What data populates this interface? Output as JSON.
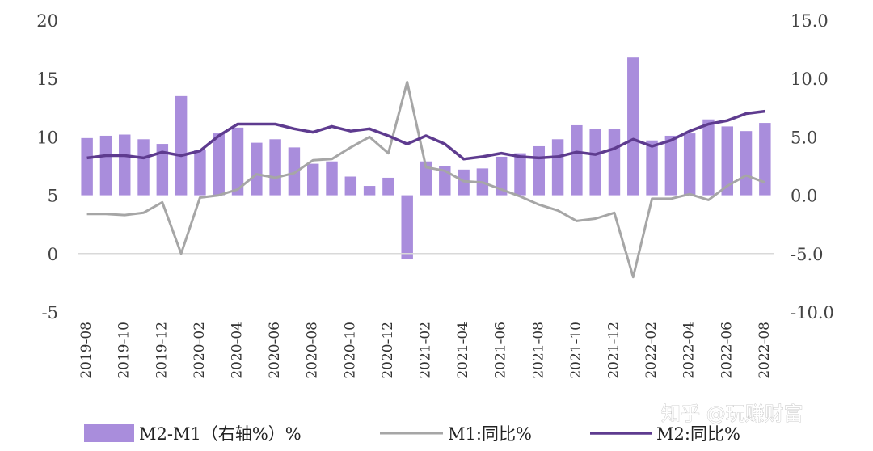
{
  "watermark": "知乎 @玩赚财富",
  "chart_data": {
    "type": "bar+line",
    "categories": [
      "2019-08",
      "2019-09",
      "2019-10",
      "2019-11",
      "2019-12",
      "2020-01",
      "2020-02",
      "2020-03",
      "2020-04",
      "2020-05",
      "2020-06",
      "2020-07",
      "2020-08",
      "2020-09",
      "2020-10",
      "2020-11",
      "2020-12",
      "2021-01",
      "2021-02",
      "2021-03",
      "2021-04",
      "2021-05",
      "2021-06",
      "2021-07",
      "2021-08",
      "2021-09",
      "2021-10",
      "2021-11",
      "2021-12",
      "2022-01",
      "2022-02",
      "2022-03",
      "2022-04",
      "2022-05",
      "2022-06",
      "2022-07",
      "2022-08"
    ],
    "x_tick_labels": [
      "2019-08",
      "2019-10",
      "2019-12",
      "2020-02",
      "2020-04",
      "2020-06",
      "2020-08",
      "2020-10",
      "2020-12",
      "2021-02",
      "2021-04",
      "2021-06",
      "2021-08",
      "2021-10",
      "2021-12",
      "2022-02",
      "2022-04",
      "2022-06",
      "2022-08"
    ],
    "left_axis": {
      "min": -5,
      "max": 20,
      "ticks": [
        "20",
        "15",
        "10",
        "5",
        "0",
        "-5"
      ]
    },
    "right_axis": {
      "min": -10,
      "max": 15,
      "ticks": [
        "15.0",
        "10.0",
        "5.0",
        "0.0",
        "-5.0",
        "-10.0"
      ]
    },
    "grid": false,
    "legend_position": "bottom",
    "series": [
      {
        "name": "M2-M1（右轴%）%",
        "type": "bar",
        "axis": "right",
        "color": "#a98ddc",
        "values": [
          4.9,
          5.1,
          5.2,
          4.8,
          4.4,
          8.5,
          3.9,
          5.3,
          5.8,
          4.5,
          4.8,
          4.1,
          2.7,
          2.9,
          1.6,
          0.8,
          1.5,
          -5.5,
          2.9,
          2.5,
          2.2,
          2.3,
          3.3,
          3.6,
          4.2,
          4.8,
          6.0,
          5.7,
          5.7,
          11.8,
          4.7,
          5.1,
          5.3,
          6.5,
          5.9,
          5.5,
          6.2
        ]
      },
      {
        "name": "M1:同比%",
        "type": "line",
        "axis": "left",
        "color": "#a6a6a6",
        "values": [
          3.4,
          3.4,
          3.3,
          3.5,
          4.4,
          0.0,
          4.8,
          5.0,
          5.5,
          6.8,
          6.5,
          6.9,
          8.0,
          8.1,
          9.1,
          10.0,
          8.6,
          14.7,
          7.4,
          7.1,
          6.2,
          6.1,
          5.5,
          4.9,
          4.2,
          3.7,
          2.8,
          3.0,
          3.5,
          -2.0,
          4.7,
          4.7,
          5.1,
          4.6,
          5.8,
          6.7,
          6.1
        ]
      },
      {
        "name": "M2:同比%",
        "type": "line",
        "axis": "left",
        "color": "#5e3b8f",
        "values": [
          8.2,
          8.4,
          8.4,
          8.2,
          8.7,
          8.4,
          8.8,
          10.1,
          11.1,
          11.1,
          11.1,
          10.7,
          10.4,
          10.9,
          10.5,
          10.7,
          10.1,
          9.4,
          10.1,
          9.4,
          8.1,
          8.3,
          8.6,
          8.3,
          8.2,
          8.3,
          8.7,
          8.5,
          9.0,
          9.8,
          9.2,
          9.7,
          10.5,
          11.1,
          11.4,
          12.0,
          12.2
        ]
      }
    ]
  }
}
